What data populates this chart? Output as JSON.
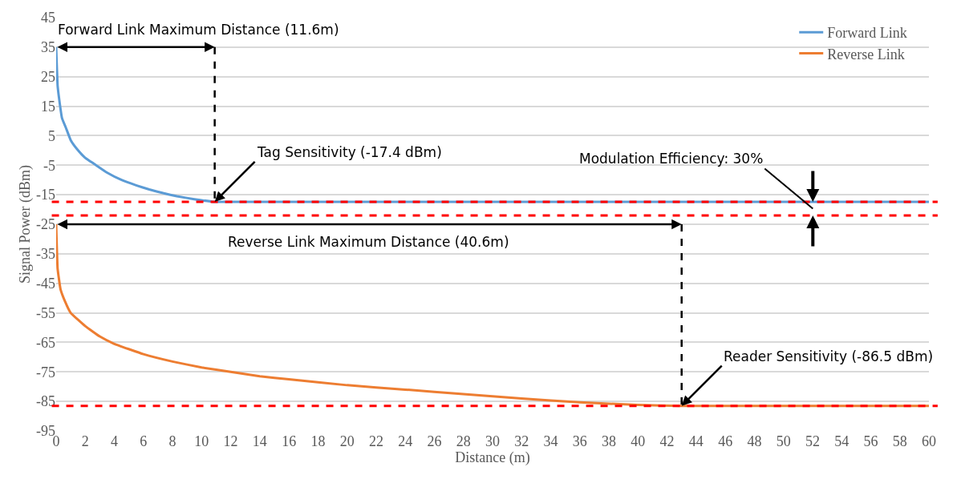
{
  "chart_data": {
    "type": "line",
    "xlabel": "Distance (m)",
    "ylabel": "Signal Power (dBm)",
    "xlim": [
      0,
      60
    ],
    "xticks": [
      0,
      2,
      4,
      6,
      8,
      10,
      12,
      14,
      16,
      18,
      20,
      22,
      24,
      26,
      28,
      30,
      32,
      34,
      36,
      38,
      40,
      42,
      44,
      46,
      48,
      50,
      52,
      54,
      56,
      58,
      60
    ],
    "ylim": [
      -95,
      45
    ],
    "yticks": [
      -95,
      -85,
      -75,
      -65,
      -55,
      -45,
      -35,
      -25,
      -15,
      -5,
      5,
      15,
      25,
      35,
      45
    ],
    "grid": "y",
    "legend": "top right",
    "marker": "none",
    "line_style": "solid",
    "series": [
      {
        "name": "Forward Link",
        "color": "#5b9bd5",
        "x": [
          0,
          0.1,
          0.2,
          0.4,
          0.67,
          1,
          1.43,
          2,
          2.6,
          3.5,
          4.5,
          5.5,
          6.4,
          7.4,
          8.3,
          9.5,
          10.9,
          60
        ],
        "values": [
          35,
          22,
          17.7,
          11,
          7.7,
          3.5,
          0.5,
          -2.5,
          -4.5,
          -7.5,
          -10,
          -11.8,
          -13.2,
          -14.5,
          -15.5,
          -16.5,
          -17.4,
          -17.4
        ]
      },
      {
        "name": "Reverse Link",
        "color": "#ed7d31",
        "x": [
          0,
          0.1,
          0.3,
          0.6,
          1,
          2,
          3,
          4,
          6,
          8,
          10,
          12,
          14,
          16,
          20,
          24,
          28,
          32,
          36,
          40,
          43,
          60
        ],
        "values": [
          -25,
          -40,
          -47,
          -51,
          -55,
          -59.5,
          -63,
          -65.5,
          -69,
          -71.5,
          -73.5,
          -75,
          -76.5,
          -77.5,
          -79.5,
          -81,
          -82.5,
          -84,
          -85.3,
          -86.2,
          -86.5,
          -86.5
        ]
      }
    ],
    "ref_lines": [
      {
        "axis": "y",
        "value": -17.4,
        "color": "#ff0000",
        "line_style": "dashed"
      },
      {
        "axis": "y",
        "value": -22,
        "color": "#ff0000",
        "line_style": "dashed"
      },
      {
        "axis": "y",
        "value": -86.5,
        "color": "#ff0000",
        "line_style": "dashed"
      }
    ],
    "annotations": [
      "Forward Link Maximum Distance (11.6m)",
      {
        "text": "Tag Sensitivity (-17.4 dBm)",
        "x": 10.9,
        "y": -17.4
      },
      "Reverse Link Maximum Distance (40.6m)",
      {
        "text": "Reader Sensitivity (-86.5 dBm)",
        "x": 43,
        "y": -86.5
      },
      "Modulation Efficiency: 30%"
    ]
  }
}
